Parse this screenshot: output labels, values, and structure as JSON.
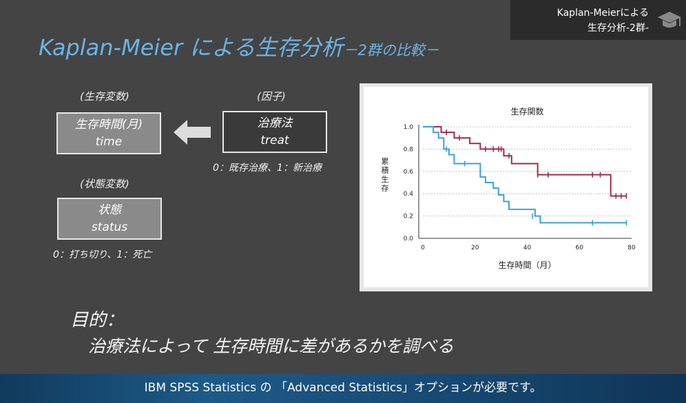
{
  "badge": {
    "line1": "Kaplan-Meierによる",
    "line2": "生存分析-2群-",
    "icon": "graduation-cap-icon"
  },
  "title": {
    "main": "Kaplan-Meier による生存分析",
    "sub": "－2群の比較－"
  },
  "survival_var": {
    "heading": "(生存変数)",
    "name": "生存時間(月)",
    "code": "time"
  },
  "factor": {
    "heading": "(因子)",
    "name": "治療法",
    "code": "treat",
    "note": "0：既存治療、1：新治療"
  },
  "status_var": {
    "heading": "(状態変数)",
    "name": "状態",
    "code": "status",
    "note": "0：打ち切り、1：死亡"
  },
  "purpose": {
    "label": "目的：",
    "text": "治療法によって 生存時間に差があるかを調べる"
  },
  "footer": {
    "text": "IBM SPSS Statistics の 「Advanced Statistics」オプションが必要です。"
  },
  "colors": {
    "title": "#6cb4e6",
    "series_existing": "#a0294d",
    "series_new": "#3aa0dc"
  },
  "chart_data": {
    "type": "line",
    "title": "生存関数",
    "xlabel": "生存時間（月）",
    "ylabel": "累積生存",
    "xlim": [
      0,
      80
    ],
    "ylim": [
      0,
      1.0
    ],
    "xticks": [
      0,
      20,
      40,
      60,
      80
    ],
    "yticks": [
      "0.0",
      "0.2",
      "0.4",
      "0.6",
      "0.8",
      "1.0"
    ],
    "grid": "horizontal dashed",
    "series": [
      {
        "color": "#a0294d",
        "steps": [
          [
            0,
            1.0
          ],
          [
            7,
            0.95
          ],
          [
            12,
            0.9
          ],
          [
            18,
            0.85
          ],
          [
            22,
            0.8
          ],
          [
            31,
            0.74
          ],
          [
            34,
            0.67
          ],
          [
            44,
            0.57
          ],
          [
            72,
            0.38
          ],
          [
            78,
            0.38
          ]
        ],
        "censored": [
          [
            9,
            0.95
          ],
          [
            14,
            0.9
          ],
          [
            24,
            0.8
          ],
          [
            27,
            0.8
          ],
          [
            29,
            0.8
          ],
          [
            30,
            0.8
          ],
          [
            33,
            0.74
          ],
          [
            44,
            0.57
          ],
          [
            48,
            0.57
          ],
          [
            65,
            0.57
          ],
          [
            68,
            0.57
          ],
          [
            74,
            0.38
          ],
          [
            76,
            0.38
          ],
          [
            78,
            0.38
          ]
        ]
      },
      {
        "color": "#3aa0dc",
        "steps": [
          [
            0,
            1.0
          ],
          [
            4,
            0.95
          ],
          [
            6,
            0.9
          ],
          [
            8,
            0.8
          ],
          [
            10,
            0.75
          ],
          [
            12,
            0.67
          ],
          [
            22,
            0.55
          ],
          [
            24,
            0.5
          ],
          [
            27,
            0.45
          ],
          [
            29,
            0.39
          ],
          [
            31,
            0.33
          ],
          [
            33,
            0.26
          ],
          [
            43,
            0.2
          ],
          [
            45,
            0.14
          ],
          [
            78,
            0.14
          ]
        ],
        "censored": [
          [
            9,
            0.8
          ],
          [
            16,
            0.67
          ],
          [
            42,
            0.2
          ],
          [
            65,
            0.14
          ],
          [
            78,
            0.14
          ]
        ]
      }
    ]
  }
}
